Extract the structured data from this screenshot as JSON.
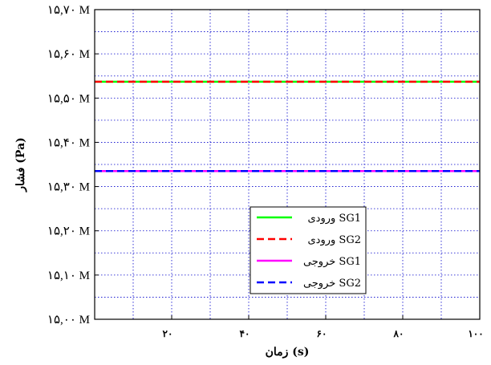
{
  "chart_data": {
    "type": "line",
    "xlabel": "زمان (s)",
    "ylabel": "فشار (Pa)",
    "xlim": [
      0,
      100
    ],
    "ylim": [
      15.0,
      15.7
    ],
    "x_ticks": [
      {
        "value": 20,
        "label": "۲۰"
      },
      {
        "value": 40,
        "label": "۴۰"
      },
      {
        "value": 60,
        "label": "۶۰"
      },
      {
        "value": 80,
        "label": "۸۰"
      },
      {
        "value": 100,
        "label": "۱۰۰"
      }
    ],
    "y_ticks": [
      {
        "value": 15.0,
        "label": "۱۵,۰۰ M"
      },
      {
        "value": 15.1,
        "label": "۱۵,۱۰ M"
      },
      {
        "value": 15.2,
        "label": "۱۵,۲۰ M"
      },
      {
        "value": 15.3,
        "label": "۱۵,۳۰ M"
      },
      {
        "value": 15.4,
        "label": "۱۵,۴۰ M"
      },
      {
        "value": 15.5,
        "label": "۱۵,۵۰ M"
      },
      {
        "value": 15.6,
        "label": "۱۵,۶۰ M"
      },
      {
        "value": 15.7,
        "label": "۱۵,۷۰ M"
      }
    ],
    "grid": true,
    "legend_position": "bottom-center",
    "series": [
      {
        "name": "ورودی SG1",
        "x": [
          0,
          100
        ],
        "y": [
          15.537,
          15.537
        ],
        "color": "#00ff00",
        "dash": "solid"
      },
      {
        "name": "ورودی SG2",
        "x": [
          0,
          100
        ],
        "y": [
          15.537,
          15.537
        ],
        "color": "#ff0000",
        "dash": "dashed"
      },
      {
        "name": "خروجی SG1",
        "x": [
          0,
          100
        ],
        "y": [
          15.335,
          15.335
        ],
        "color": "#ff00ff",
        "dash": "solid"
      },
      {
        "name": "خروجی SG2",
        "x": [
          0,
          100
        ],
        "y": [
          15.335,
          15.335
        ],
        "color": "#0000ff",
        "dash": "dashed"
      }
    ]
  }
}
